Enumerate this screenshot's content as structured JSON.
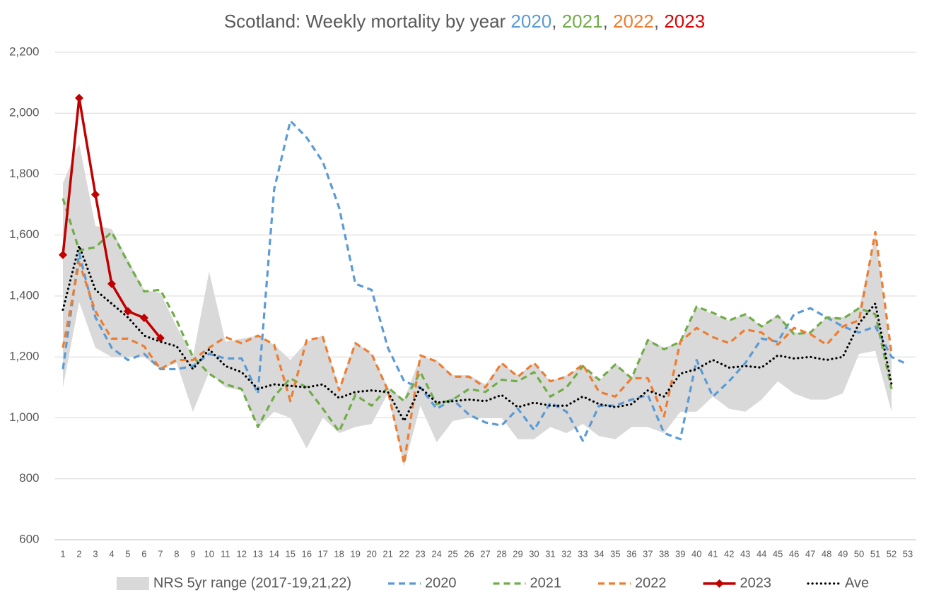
{
  "chart_data": {
    "type": "line",
    "title_segments": [
      {
        "text": "Scotland: Weekly mortality by year ",
        "color": "#595959"
      },
      {
        "text": "2020",
        "color": "#5b9bd5"
      },
      {
        "text": ", ",
        "color": "#595959"
      },
      {
        "text": "2021",
        "color": "#70ad47"
      },
      {
        "text": ", ",
        "color": "#595959"
      },
      {
        "text": "2022",
        "color": "#ed7d31"
      },
      {
        "text": ", ",
        "color": "#595959"
      },
      {
        "text": "2023",
        "color": "#e00000"
      }
    ],
    "x": [
      1,
      2,
      3,
      4,
      5,
      6,
      7,
      8,
      9,
      10,
      11,
      12,
      13,
      14,
      15,
      16,
      17,
      18,
      19,
      20,
      21,
      22,
      23,
      24,
      25,
      26,
      27,
      28,
      29,
      30,
      31,
      32,
      33,
      34,
      35,
      36,
      37,
      38,
      39,
      40,
      41,
      42,
      43,
      44,
      45,
      46,
      47,
      48,
      49,
      50,
      51,
      52,
      53
    ],
    "xlim": [
      0.5,
      53.5
    ],
    "ylim": [
      600,
      2200
    ],
    "yticks": [
      600,
      800,
      {
        "value": 1000,
        "label": "1,000"
      },
      {
        "value": 1200,
        "label": "1,200"
      },
      {
        "value": 1400,
        "label": "1,400"
      },
      {
        "value": 1600,
        "label": "1,600"
      },
      {
        "value": 1800,
        "label": "1,800"
      },
      {
        "value": 2000,
        "label": "2,000"
      },
      {
        "value": 2200,
        "label": "2,200"
      }
    ],
    "grid": true,
    "legend": "bottom",
    "range": {
      "name": "NRS 5yr range (2017-19,21,22)",
      "color": "#d9d9d9",
      "lower": [
        1100,
        1380,
        1230,
        1200,
        1200,
        1200,
        1160,
        1180,
        1020,
        1150,
        1100,
        1090,
        970,
        1020,
        1000,
        900,
        1000,
        950,
        970,
        980,
        1080,
        840,
        1040,
        920,
        990,
        1000,
        1000,
        1000,
        930,
        930,
        970,
        950,
        980,
        940,
        930,
        970,
        970,
        950,
        1020,
        1020,
        1070,
        1030,
        1020,
        1060,
        1120,
        1080,
        1060,
        1060,
        1080,
        1210,
        1220,
        1020,
        null
      ],
      "upper": [
        1770,
        1900,
        1630,
        1620,
        1520,
        1420,
        1410,
        1300,
        1200,
        1480,
        1250,
        1260,
        1270,
        1240,
        1190,
        1250,
        1270,
        1100,
        1250,
        1210,
        1100,
        1060,
        1200,
        1190,
        1140,
        1140,
        1110,
        1180,
        1140,
        1180,
        1120,
        1140,
        1170,
        1120,
        1180,
        1130,
        1260,
        1230,
        1250,
        1365,
        1340,
        1320,
        1340,
        1300,
        1340,
        1280,
        1280,
        1330,
        1330,
        1360,
        1600,
        1200,
        null
      ]
    },
    "series": [
      {
        "name": "2020",
        "color": "#5b9bd5",
        "style": "dashed",
        "values": [
          1160,
          1540,
          1330,
          1230,
          1190,
          1210,
          1160,
          1160,
          1170,
          1210,
          1195,
          1195,
          1080,
          1750,
          1975,
          1920,
          1840,
          1690,
          1440,
          1420,
          1230,
          1120,
          1100,
          1030,
          1060,
          1010,
          985,
          975,
          1030,
          960,
          1050,
          1020,
          925,
          1040,
          1040,
          1060,
          1075,
          950,
          930,
          1190,
          1070,
          1120,
          1180,
          1260,
          1250,
          1340,
          1360,
          1330,
          1300,
          1280,
          1300,
          1200,
          1175
        ]
      },
      {
        "name": "2021",
        "color": "#70ad47",
        "style": "dashed",
        "values": [
          1720,
          1550,
          1560,
          1610,
          1510,
          1415,
          1420,
          1320,
          1200,
          1145,
          1110,
          1095,
          970,
          1070,
          1130,
          1100,
          1030,
          955,
          1075,
          1040,
          1100,
          1055,
          1150,
          1045,
          1060,
          1095,
          1085,
          1125,
          1120,
          1150,
          1070,
          1100,
          1170,
          1125,
          1175,
          1130,
          1255,
          1225,
          1250,
          1365,
          1345,
          1320,
          1340,
          1300,
          1335,
          1275,
          1280,
          1330,
          1325,
          1360,
          1340,
          1095,
          null
        ]
      },
      {
        "name": "2022",
        "color": "#ed7d31",
        "style": "dashed",
        "values": [
          1230,
          1510,
          1350,
          1260,
          1260,
          1235,
          1160,
          1190,
          1190,
          1230,
          1265,
          1245,
          1270,
          1240,
          1055,
          1255,
          1265,
          1090,
          1245,
          1210,
          1090,
          850,
          1205,
          1185,
          1135,
          1135,
          1100,
          1180,
          1135,
          1180,
          1120,
          1135,
          1175,
          1085,
          1070,
          1130,
          1130,
          1005,
          1250,
          1295,
          1265,
          1245,
          1290,
          1280,
          1240,
          1295,
          1275,
          1240,
          1300,
          1320,
          1610,
          1210,
          null
        ]
      },
      {
        "name": "2023",
        "color": "#c00000",
        "style": "solid",
        "marker": "diamond",
        "values": [
          1535,
          2050,
          1733,
          1440,
          1350,
          1328,
          1262,
          null,
          null,
          null,
          null,
          null,
          null,
          null,
          null,
          null,
          null,
          null,
          null,
          null,
          null,
          null,
          null,
          null,
          null,
          null,
          null,
          null,
          null,
          null,
          null,
          null,
          null,
          null,
          null,
          null,
          null,
          null,
          null,
          null,
          null,
          null,
          null,
          null,
          null,
          null,
          null,
          null,
          null,
          null,
          null,
          null,
          null
        ]
      },
      {
        "name": "Ave",
        "color": "#000000",
        "style": "dotted",
        "values": [
          1355,
          1565,
          1420,
          1375,
          1330,
          1270,
          1250,
          1235,
          1160,
          1225,
          1170,
          1150,
          1095,
          1110,
          1105,
          1100,
          1110,
          1065,
          1085,
          1090,
          1085,
          990,
          1100,
          1050,
          1055,
          1060,
          1055,
          1075,
          1035,
          1050,
          1040,
          1040,
          1070,
          1045,
          1035,
          1045,
          1090,
          1070,
          1145,
          1160,
          1190,
          1165,
          1170,
          1165,
          1205,
          1195,
          1200,
          1190,
          1200,
          1310,
          1375,
          1110,
          null
        ]
      }
    ]
  }
}
